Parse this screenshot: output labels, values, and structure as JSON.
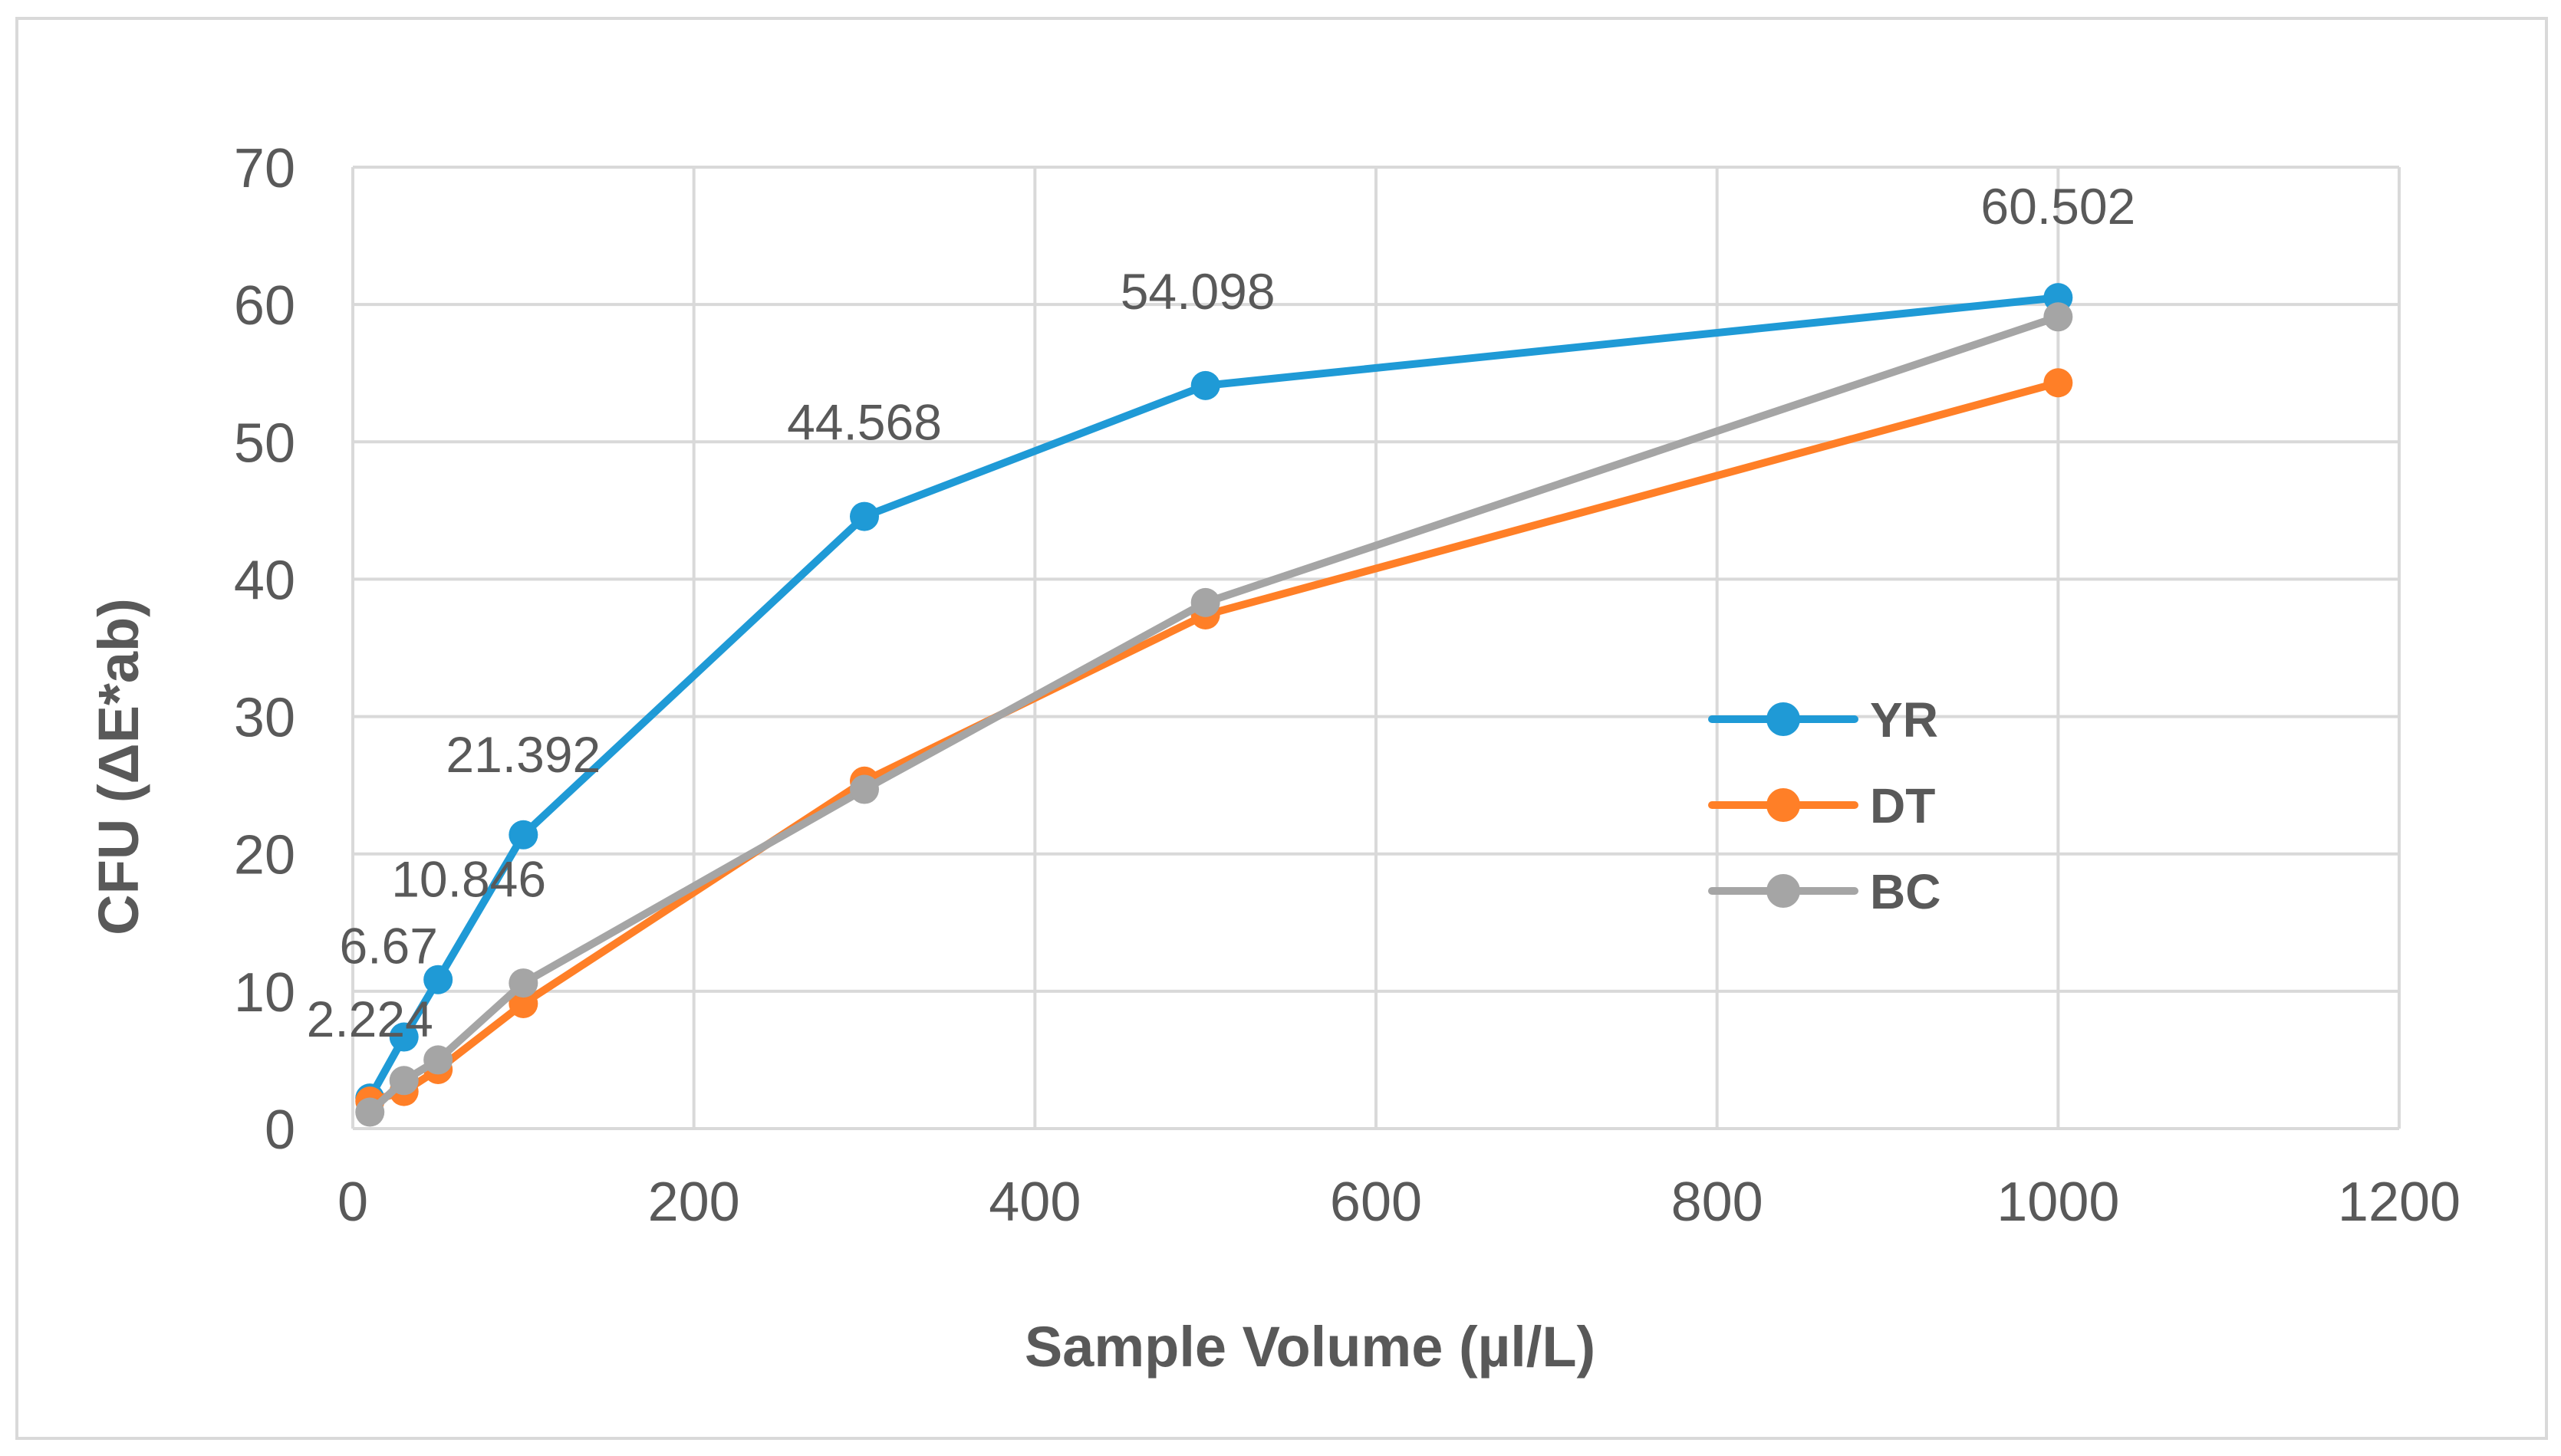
{
  "chart_data": {
    "type": "line",
    "title": "",
    "xlabel": "Sample Volume (µl/L)",
    "ylabel": "CFU (ΔE*ab)",
    "xlim": [
      0,
      1200
    ],
    "ylim": [
      0,
      70
    ],
    "x_ticks": [
      0,
      200,
      400,
      600,
      800,
      1000,
      1200
    ],
    "y_ticks": [
      0,
      10,
      20,
      30,
      40,
      50,
      60,
      70
    ],
    "grid": true,
    "legend_position": "right",
    "series": [
      {
        "name": "YR",
        "color": "#1F9AD6",
        "x": [
          10,
          30,
          50,
          100,
          300,
          500,
          1000
        ],
        "y": [
          2.224,
          6.67,
          10.846,
          21.392,
          44.568,
          54.098,
          60.502
        ],
        "data_labels": [
          "2.224",
          "6.67",
          "10.846",
          "21.392",
          "44.568",
          "54.098",
          "60.502"
        ]
      },
      {
        "name": "DT",
        "color": "#FF7F27",
        "x": [
          10,
          30,
          50,
          100,
          300,
          500,
          1000
        ],
        "y": [
          2.0,
          2.7,
          4.3,
          9.1,
          25.3,
          37.4,
          54.3
        ],
        "data_labels": []
      },
      {
        "name": "BC",
        "color": "#A5A5A5",
        "x": [
          10,
          30,
          50,
          100,
          300,
          500,
          1000
        ],
        "y": [
          1.2,
          3.5,
          5.0,
          10.6,
          24.7,
          38.3,
          59.1
        ],
        "data_labels": []
      }
    ]
  }
}
